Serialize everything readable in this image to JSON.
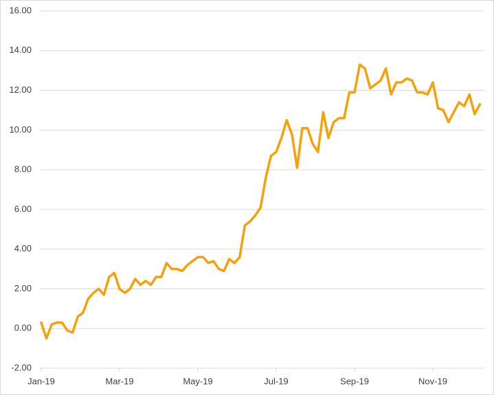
{
  "chart_data": {
    "type": "line",
    "categories": [
      "Jan-19",
      null,
      null,
      null,
      null,
      null,
      null,
      null,
      null,
      null,
      null,
      null,
      null,
      null,
      null,
      "Mar-19",
      null,
      null,
      null,
      null,
      null,
      null,
      null,
      null,
      null,
      null,
      null,
      null,
      null,
      null,
      "May-19",
      null,
      null,
      null,
      null,
      null,
      null,
      null,
      null,
      null,
      null,
      null,
      null,
      null,
      null,
      "Jul-19",
      null,
      null,
      null,
      null,
      null,
      null,
      null,
      null,
      null,
      null,
      null,
      null,
      null,
      null,
      "Sep-19",
      null,
      null,
      null,
      null,
      null,
      null,
      null,
      null,
      null,
      null,
      null,
      null,
      null,
      null,
      "Nov-19",
      null,
      null,
      null,
      null,
      null,
      null,
      null,
      null,
      null
    ],
    "values": [
      0.3,
      -0.5,
      0.2,
      0.3,
      0.3,
      -0.1,
      -0.2,
      0.6,
      0.8,
      1.5,
      1.8,
      2.0,
      1.7,
      2.6,
      2.8,
      2.0,
      1.8,
      2.0,
      2.5,
      2.2,
      2.4,
      2.2,
      2.6,
      2.6,
      3.3,
      3.0,
      3.0,
      2.9,
      3.2,
      3.4,
      3.6,
      3.6,
      3.3,
      3.4,
      3.0,
      2.9,
      3.5,
      3.3,
      3.6,
      5.2,
      5.4,
      5.7,
      6.1,
      7.6,
      8.7,
      8.9,
      9.6,
      10.5,
      9.8,
      8.1,
      10.1,
      10.1,
      9.3,
      8.9,
      10.9,
      9.6,
      10.4,
      10.6,
      10.6,
      11.9,
      11.9,
      13.3,
      13.1,
      12.1,
      12.3,
      12.5,
      13.1,
      11.8,
      12.4,
      12.4,
      12.6,
      12.5,
      11.9,
      11.9,
      11.8,
      12.4,
      11.1,
      11.0,
      10.4,
      10.9,
      11.4,
      11.2,
      11.8,
      10.8,
      11.3
    ],
    "color": "#f5a10a",
    "ylim": [
      -2,
      16
    ],
    "yticks": [
      {
        "value": -2,
        "label": "-2.00"
      },
      {
        "value": 0,
        "label": "0.00"
      },
      {
        "value": 2,
        "label": "2.00"
      },
      {
        "value": 4,
        "label": "4.00"
      },
      {
        "value": 6,
        "label": "6.00"
      },
      {
        "value": 8,
        "label": "8.00"
      },
      {
        "value": 10,
        "label": "10.00"
      },
      {
        "value": 12,
        "label": "12.00"
      },
      {
        "value": 14,
        "label": "14.00"
      },
      {
        "value": 16,
        "label": "16.00"
      }
    ],
    "grid": true
  }
}
